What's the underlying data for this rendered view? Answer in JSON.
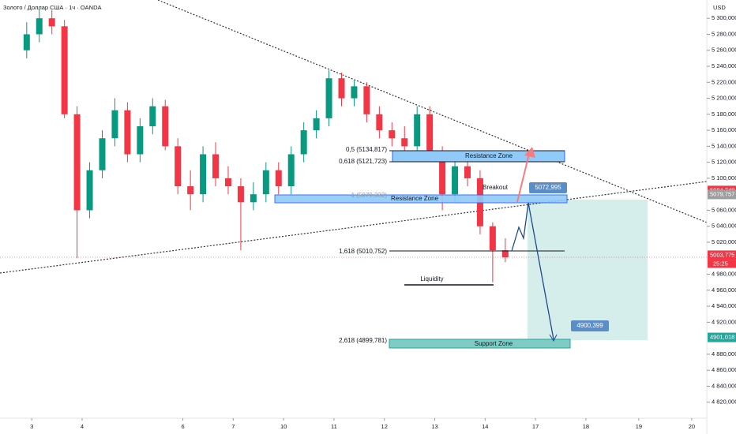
{
  "header": {
    "symbol": "Золото / Доллар США · 1ч · OANDA",
    "currency": "USD"
  },
  "chart_data": {
    "type": "candlestick",
    "up_color": "#089981",
    "down_color": "#f23645",
    "x": [
      -0.1,
      0.15,
      0.4,
      0.65,
      0.9,
      1.15,
      1.4,
      1.65,
      1.9,
      2.15,
      2.4,
      2.65,
      2.9,
      3.15,
      3.4,
      3.65,
      3.9,
      4.15,
      4.4,
      4.65,
      4.9,
      5.15,
      5.4,
      5.65,
      5.9,
      6.15,
      6.4,
      6.65,
      6.9,
      7.15,
      7.4,
      7.65,
      7.9,
      8.15,
      8.4,
      8.65,
      8.9,
      9.15,
      9.4
    ],
    "open": [
      5260,
      5280,
      5300,
      5290,
      5180,
      5060,
      5110,
      5150,
      5185,
      5130,
      5165,
      5190,
      5140,
      5090,
      5080,
      5130,
      5100,
      5090,
      5070,
      5080,
      5110,
      5090,
      5130,
      5160,
      5175,
      5225,
      5200,
      5215,
      5180,
      5160,
      5150,
      5140,
      5180,
      5130,
      5080,
      5115,
      5100,
      5040,
      5010
    ],
    "high": [
      5295,
      5312,
      5310,
      5298,
      5190,
      5120,
      5160,
      5200,
      5195,
      5175,
      5200,
      5198,
      5150,
      5110,
      5140,
      5145,
      5115,
      5100,
      5095,
      5120,
      5120,
      5140,
      5170,
      5185,
      5235,
      5232,
      5222,
      5220,
      5190,
      5170,
      5165,
      5190,
      5190,
      5140,
      5125,
      5130,
      5110,
      5045,
      5025
    ],
    "low": [
      5250,
      5270,
      5280,
      5175,
      5000,
      5050,
      5100,
      5140,
      5120,
      5120,
      5155,
      5135,
      5080,
      5060,
      5070,
      5090,
      5080,
      5010,
      5060,
      5070,
      5080,
      5080,
      5120,
      5150,
      5165,
      5190,
      5190,
      5170,
      5150,
      5140,
      5130,
      5130,
      5120,
      5060,
      5070,
      5090,
      5030,
      4970,
      4995
    ],
    "close": [
      5280,
      5300,
      5290,
      5180,
      5060,
      5110,
      5150,
      5185,
      5130,
      5165,
      5190,
      5140,
      5090,
      5080,
      5130,
      5100,
      5090,
      5070,
      5080,
      5110,
      5090,
      5130,
      5160,
      5175,
      5225,
      5200,
      5215,
      5180,
      5160,
      5150,
      5140,
      5180,
      5130,
      5080,
      5115,
      5100,
      5040,
      5010,
      5001
    ],
    "xlim": [
      -0.63,
      13.4
    ],
    "ylim": [
      5313,
      4800
    ],
    "xticks": [
      {
        "value": 0,
        "label": "3"
      },
      {
        "value": 1,
        "label": "4"
      },
      {
        "value": 3,
        "label": "6"
      },
      {
        "value": 4,
        "label": "7"
      },
      {
        "value": 5,
        "label": "10"
      },
      {
        "value": 6,
        "label": "11"
      },
      {
        "value": 7,
        "label": "12"
      },
      {
        "value": 8,
        "label": "13"
      },
      {
        "value": 9,
        "label": "14"
      },
      {
        "value": 10,
        "label": "17"
      },
      {
        "value": 11,
        "label": "18"
      },
      {
        "value": 12.05,
        "label": "19"
      },
      {
        "value": 13.1,
        "label": "20"
      }
    ],
    "yticks": [
      {
        "value": 5300,
        "label": "5 300,000"
      },
      {
        "value": 5280,
        "label": "5 280,000"
      },
      {
        "value": 5260,
        "label": "5 260,000"
      },
      {
        "value": 5240,
        "label": "5 240,000"
      },
      {
        "value": 5220,
        "label": "5 220,000"
      },
      {
        "value": 5200,
        "label": "5 200,000"
      },
      {
        "value": 5180,
        "label": "5 180,000"
      },
      {
        "value": 5160,
        "label": "5 160,000"
      },
      {
        "value": 5140,
        "label": "5 140,000"
      },
      {
        "value": 5120,
        "label": "5 120,000"
      },
      {
        "value": 5100,
        "label": "5 100,000"
      },
      {
        "value": 5060,
        "label": "5 060,000"
      },
      {
        "value": 5040,
        "label": "5 040,000"
      },
      {
        "value": 5020,
        "label": "5 020,000"
      },
      {
        "value": 4980,
        "label": "4 980,000"
      },
      {
        "value": 4960,
        "label": "4 960,000"
      },
      {
        "value": 4940,
        "label": "4 940,000"
      },
      {
        "value": 4920,
        "label": "4 920,000"
      },
      {
        "value": 4880,
        "label": "4 880,000"
      },
      {
        "value": 4860,
        "label": "4 860,000"
      },
      {
        "value": 4840,
        "label": "4 840,000"
      },
      {
        "value": 4820,
        "label": "4 820,000"
      }
    ],
    "price_tags": [
      {
        "value": 5084.748,
        "label": "5084,748",
        "color": "#f23645"
      },
      {
        "value": 5079.757,
        "label": "5079,757",
        "color": "#9e9e9e"
      },
      {
        "value": 5003.775,
        "label": "5003,775",
        "color": "#f23645"
      },
      {
        "value": 4901.018,
        "label": "4901,018",
        "color": "#26a69a"
      }
    ],
    "countdown": "25:25"
  },
  "annotations": {
    "fib_05": "0,5 (5134,817)",
    "fib_0618": "0,618 (5121,723)",
    "fib_1": "1 (5079,332)",
    "fib_1618": "1,618 (5010,752)",
    "fib_2618": "2,618 (4899,781)",
    "resistance_upper": "Resistance Zone",
    "resistance_lower": "Resistance Zone",
    "support": "Support Zone",
    "breakout": "Breakout",
    "liquidity": "Liquidity",
    "target_up": "5072,995",
    "target_down": "4900,399"
  }
}
